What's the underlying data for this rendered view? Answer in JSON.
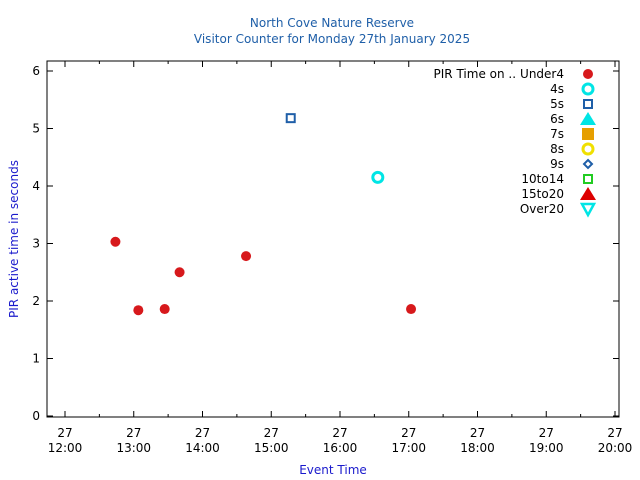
{
  "chart_data": {
    "type": "scatter",
    "title": "North Cove Nature Reserve",
    "subtitle": "Visitor Counter for Monday 27th January 2025",
    "xlabel": "Event Time",
    "ylabel": "PIR active time in seconds",
    "xlim": [
      "12:00",
      "20:00"
    ],
    "ylim": [
      0,
      6
    ],
    "x_ticks": [
      {
        "day": "27",
        "time": "12:00"
      },
      {
        "day": "27",
        "time": "13:00"
      },
      {
        "day": "27",
        "time": "14:00"
      },
      {
        "day": "27",
        "time": "15:00"
      },
      {
        "day": "27",
        "time": "16:00"
      },
      {
        "day": "27",
        "time": "17:00"
      },
      {
        "day": "27",
        "time": "18:00"
      },
      {
        "day": "27",
        "time": "19:00"
      },
      {
        "day": "27",
        "time": "20:00"
      }
    ],
    "y_ticks": [
      "0",
      "1",
      "2",
      "3",
      "4",
      "5",
      "6"
    ],
    "legend_title": "PIR Time on ..",
    "legend_position": "top-right",
    "grid": false,
    "series": [
      {
        "name": "Under4",
        "color": "#d7191c",
        "marker": "filled-circle",
        "points": [
          {
            "x": "12:44",
            "y": 3.03
          },
          {
            "x": "13:04",
            "y": 1.84
          },
          {
            "x": "13:27",
            "y": 1.86
          },
          {
            "x": "13:40",
            "y": 2.5
          },
          {
            "x": "14:38",
            "y": 2.78
          },
          {
            "x": "17:02",
            "y": 1.86
          }
        ]
      },
      {
        "name": "4s",
        "color": "#00e5e5",
        "marker": "open-circle",
        "points": [
          {
            "x": "16:33",
            "y": 4.15
          }
        ]
      },
      {
        "name": "5s",
        "color": "#1f5fa8",
        "marker": "open-square",
        "points": [
          {
            "x": "15:17",
            "y": 5.18
          }
        ]
      },
      {
        "name": "6s",
        "color": "#00e5e5",
        "marker": "filled-triangle-up",
        "points": []
      },
      {
        "name": "7s",
        "color": "#e69f00",
        "marker": "filled-square",
        "points": []
      },
      {
        "name": "8s",
        "color": "#f0e000",
        "marker": "open-circle",
        "points": []
      },
      {
        "name": "9s",
        "color": "#1f5fa8",
        "marker": "open-diamond",
        "points": []
      },
      {
        "name": "10to14",
        "color": "#22cc22",
        "marker": "open-square",
        "points": []
      },
      {
        "name": "15to20",
        "color": "#dd0000",
        "marker": "filled-triangle-up",
        "points": []
      },
      {
        "name": "Over20",
        "color": "#00e5e5",
        "marker": "open-triangle-down",
        "points": []
      }
    ]
  }
}
